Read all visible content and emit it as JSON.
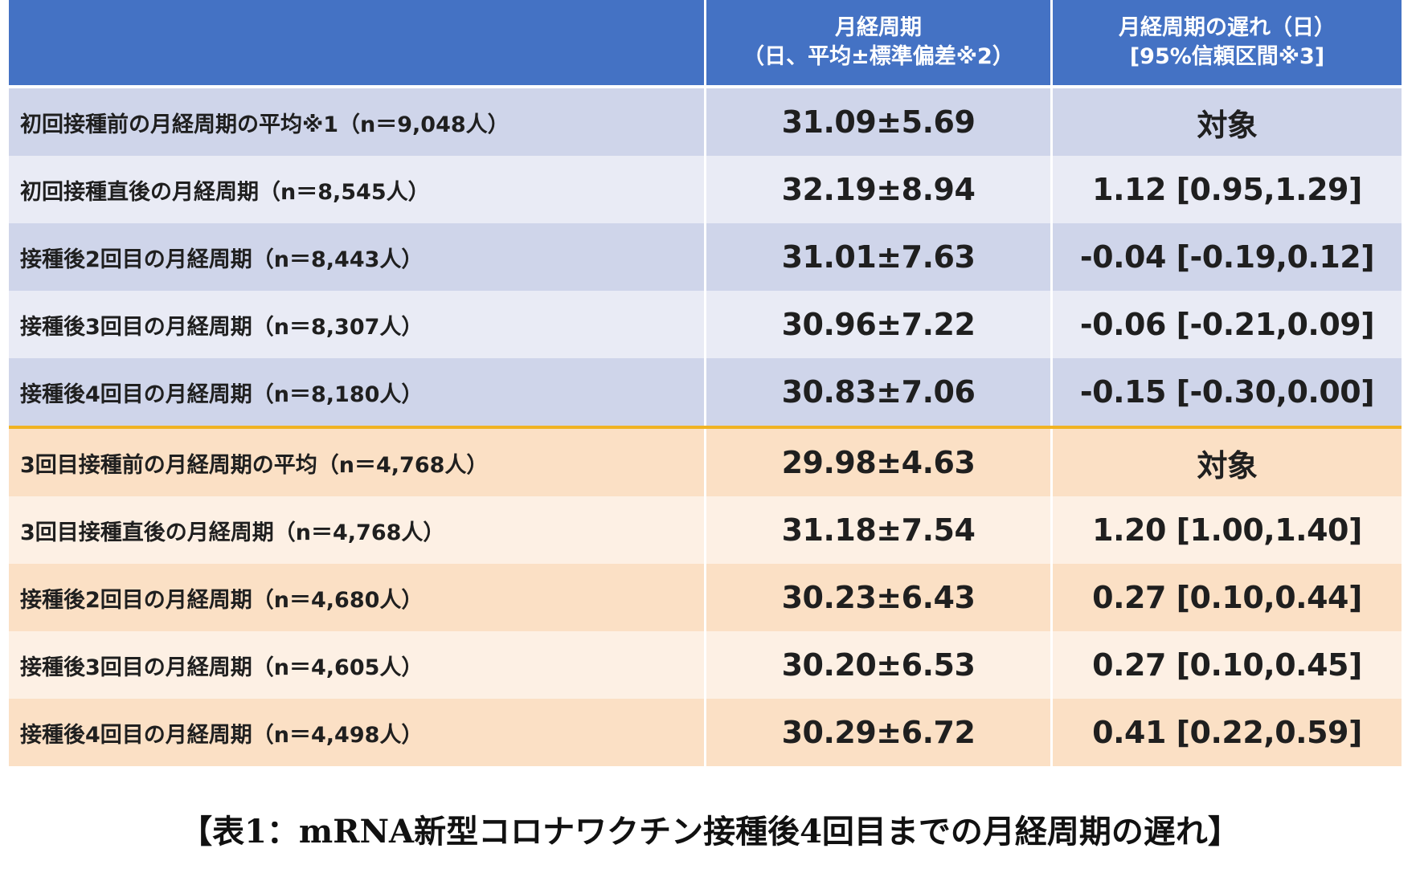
{
  "header": {
    "col1": "",
    "col2_line1": "月経周期",
    "col2_line2": "（日、平均±標準偏差※2）",
    "col3_line1": "月経周期の遅れ（日）",
    "col3_line2": "[95%信頼区間※3]"
  },
  "rows": [
    {
      "label": "初回接種前の月経周期の平均※1（n＝9,048人）",
      "mean": "31.09±5.69",
      "delay": "対象"
    },
    {
      "label": "初回接種直後の月経周期（n＝8,545人）",
      "mean": "32.19±8.94",
      "delay": "1.12 [0.95,1.29]"
    },
    {
      "label": "接種後2回目の月経周期（n＝8,443人）",
      "mean": "31.01±7.63",
      "delay": "-0.04 [-0.19,0.12]"
    },
    {
      "label": "接種後3回目の月経周期（n＝8,307人）",
      "mean": "30.96±7.22",
      "delay": "-0.06 [-0.21,0.09]"
    },
    {
      "label": "接種後4回目の月経周期（n＝8,180人）",
      "mean": "30.83±7.06",
      "delay": "-0.15 [-0.30,0.00]"
    },
    {
      "label": "3回目接種前の月経周期の平均（n＝4,768人）",
      "mean": "29.98±4.63",
      "delay": "対象"
    },
    {
      "label": "3回目接種直後の月経周期（n＝4,768人）",
      "mean": "31.18±7.54",
      "delay": "1.20 [1.00,1.40]"
    },
    {
      "label": "接種後2回目の月経周期（n＝4,680人）",
      "mean": "30.23±6.43",
      "delay": "0.27 [0.10,0.44]"
    },
    {
      "label": "接種後3回目の月経周期（n＝4,605人）",
      "mean": "30.20±6.53",
      "delay": "0.27 [0.10,0.45]"
    },
    {
      "label": "接種後4回目の月経周期（n＝4,498人）",
      "mean": "30.29±6.72",
      "delay": "0.41 [0.22,0.59]"
    }
  ],
  "caption": "【表1：mRNA新型コロナワクチン接種後4回目までの月経周期の遅れ】",
  "colors": {
    "header": "#4472c4",
    "blue_dark": "#cfd5ea",
    "blue_light": "#e9ebf5",
    "orange_dark": "#fbe0c5",
    "orange_light": "#fdf0e4",
    "separator": "#f0b323"
  }
}
